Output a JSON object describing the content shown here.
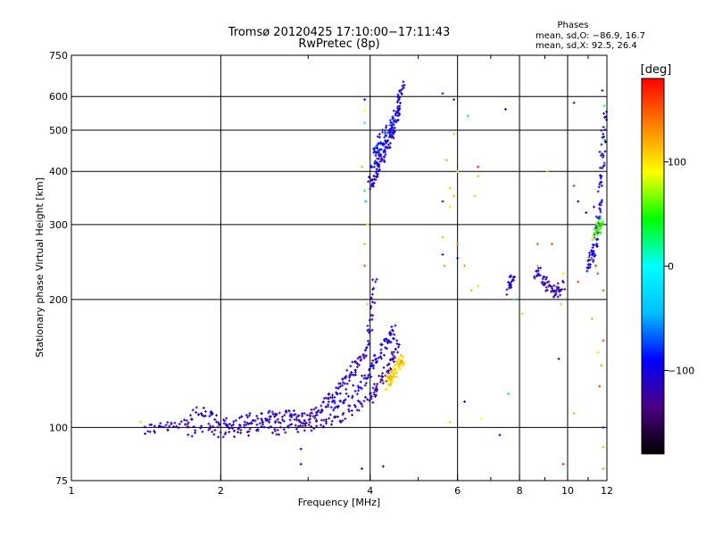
{
  "chart_data": {
    "type": "scatter",
    "title": "Tromsø 20120425 17:10:00−17:11:43",
    "subtitle": "RwPretec (8p)",
    "xlabel": "Frequency [MHz]",
    "ylabel": "Stationary phase Virtual Height [km]",
    "x_scale": "log",
    "y_scale": "log",
    "xlim": [
      1,
      12
    ],
    "ylim": [
      75,
      750
    ],
    "x_ticks": [
      1,
      2,
      4,
      6,
      8,
      10,
      12
    ],
    "x_tick_labels": [
      "1",
      "2",
      "4",
      "6",
      "8",
      "10",
      "12"
    ],
    "x_minor_ticks": [
      3,
      5,
      7,
      9,
      11
    ],
    "y_ticks": [
      75,
      100,
      200,
      300,
      400,
      500,
      600,
      750
    ],
    "y_tick_labels": [
      "75",
      "100",
      "200",
      "300",
      "400",
      "500",
      "600",
      "750"
    ],
    "grid": true,
    "phases_header": "Phases",
    "phases_lines": [
      "mean, sd,O: −86.9, 16.7",
      "mean, sd,X:  92.5, 26.4"
    ],
    "colorbar": {
      "label": "[deg]",
      "range": [
        -180,
        180
      ],
      "ticks": [
        100,
        0,
        -100
      ],
      "tick_labels": [
        "100",
        "0",
        "−100"
      ],
      "stops": [
        "#000000",
        "#4b0082",
        "#0000ff",
        "#00bfff",
        "#00ffff",
        "#00ff00",
        "#ffff00",
        "#ff8000",
        "#ff0000"
      ]
    },
    "traces": [
      {
        "name": "",
        "phase": -115,
        "points": [
          [
            1.4,
            99
          ],
          [
            1.5,
            100
          ],
          [
            1.6,
            100
          ],
          [
            1.7,
            103
          ],
          [
            1.8,
            110
          ],
          [
            1.9,
            106
          ],
          [
            2.0,
            103
          ],
          [
            2.1,
            100
          ],
          [
            2.2,
            103
          ],
          [
            2.3,
            105
          ],
          [
            2.4,
            104
          ],
          [
            2.5,
            106
          ],
          [
            2.6,
            105
          ],
          [
            2.7,
            106
          ],
          [
            2.8,
            107
          ],
          [
            2.9,
            106
          ],
          [
            3.0,
            105
          ],
          [
            3.1,
            108
          ],
          [
            3.2,
            112
          ],
          [
            3.3,
            116
          ],
          [
            3.4,
            121
          ],
          [
            3.5,
            126
          ],
          [
            3.6,
            131
          ],
          [
            3.7,
            136
          ],
          [
            3.8,
            142
          ],
          [
            3.9,
            150
          ],
          [
            4.0,
            165
          ],
          [
            4.05,
            195
          ],
          [
            4.1,
            225
          ]
        ]
      },
      {
        "name": "",
        "phase": -120,
        "points": [
          [
            1.7,
            98
          ],
          [
            1.9,
            100
          ],
          [
            2.0,
            98
          ],
          [
            2.2,
            98
          ],
          [
            2.4,
            100
          ],
          [
            2.6,
            99
          ],
          [
            2.8,
            100
          ],
          [
            3.0,
            101
          ],
          [
            3.2,
            103
          ],
          [
            3.4,
            105
          ],
          [
            3.6,
            108
          ],
          [
            3.8,
            112
          ],
          [
            4.0,
            117
          ],
          [
            4.1,
            122
          ],
          [
            4.2,
            128
          ],
          [
            4.3,
            134
          ],
          [
            4.4,
            142
          ],
          [
            4.5,
            150
          ],
          [
            4.55,
            158
          ]
        ]
      },
      {
        "name": "",
        "phase": -105,
        "points": [
          [
            3.3,
            110
          ],
          [
            3.5,
            116
          ],
          [
            3.7,
            122
          ],
          [
            3.9,
            128
          ],
          [
            4.0,
            135
          ],
          [
            4.1,
            142
          ],
          [
            4.2,
            150
          ],
          [
            4.3,
            158
          ],
          [
            4.4,
            165
          ],
          [
            4.5,
            172
          ]
        ]
      },
      {
        "name": "",
        "phase": -110,
        "points": [
          [
            4.0,
            372
          ],
          [
            4.05,
            380
          ],
          [
            4.1,
            395
          ],
          [
            4.15,
            410
          ],
          [
            4.2,
            425
          ],
          [
            4.25,
            440
          ],
          [
            4.3,
            455
          ],
          [
            4.35,
            470
          ],
          [
            4.4,
            485
          ],
          [
            4.45,
            505
          ],
          [
            4.5,
            530
          ],
          [
            4.55,
            560
          ],
          [
            4.6,
            600
          ],
          [
            4.65,
            640
          ]
        ]
      },
      {
        "name": "",
        "phase": -90,
        "points": [
          [
            4.05,
            420
          ],
          [
            4.1,
            440
          ],
          [
            4.15,
            455
          ],
          [
            4.2,
            470
          ],
          [
            4.3,
            490
          ],
          [
            4.4,
            510
          ],
          [
            4.5,
            540
          ],
          [
            4.6,
            580
          ]
        ]
      },
      {
        "name": "",
        "phase": 105,
        "points": [
          [
            4.3,
            125
          ],
          [
            4.35,
            128
          ],
          [
            4.4,
            131
          ],
          [
            4.45,
            134
          ],
          [
            4.5,
            137
          ],
          [
            4.55,
            140
          ],
          [
            4.6,
            143
          ],
          [
            4.65,
            146
          ]
        ]
      },
      {
        "name": "",
        "phase": -100,
        "points": [
          [
            11.0,
            240
          ],
          [
            11.1,
            248
          ],
          [
            11.2,
            255
          ],
          [
            11.3,
            265
          ],
          [
            11.4,
            280
          ],
          [
            11.5,
            300
          ],
          [
            11.6,
            330
          ],
          [
            11.7,
            380
          ],
          [
            11.75,
            430
          ],
          [
            11.8,
            500
          ],
          [
            11.85,
            560
          ]
        ]
      },
      {
        "name": "",
        "phase": 60,
        "points": [
          [
            11.3,
            285
          ],
          [
            11.45,
            293
          ],
          [
            11.6,
            300
          ],
          [
            11.75,
            292
          ]
        ]
      },
      {
        "name": "",
        "phase": -120,
        "points": [
          [
            8.6,
            225
          ],
          [
            8.8,
            232
          ],
          [
            9.0,
            220
          ],
          [
            9.2,
            212
          ],
          [
            9.4,
            208
          ],
          [
            9.6,
            210
          ],
          [
            9.8,
            218
          ]
        ]
      },
      {
        "name": "",
        "phase": -110,
        "points": [
          [
            7.6,
            210
          ],
          [
            7.7,
            218
          ],
          [
            7.75,
            225
          ]
        ]
      }
    ],
    "scatter_points": [
      {
        "x": 1.38,
        "y": 103,
        "phase": 110
      },
      {
        "x": 2.9,
        "y": 89,
        "phase": -100
      },
      {
        "x": 2.9,
        "y": 82,
        "phase": -110
      },
      {
        "x": 3.85,
        "y": 80,
        "phase": -100
      },
      {
        "x": 4.25,
        "y": 81,
        "phase": -150
      },
      {
        "x": 3.85,
        "y": 410,
        "phase": 120
      },
      {
        "x": 3.9,
        "y": 360,
        "phase": 40
      },
      {
        "x": 3.9,
        "y": 270,
        "phase": 120
      },
      {
        "x": 3.9,
        "y": 240,
        "phase": 150
      },
      {
        "x": 3.95,
        "y": 195,
        "phase": 110
      },
      {
        "x": 3.9,
        "y": 555,
        "phase": 90
      },
      {
        "x": 3.9,
        "y": 520,
        "phase": 20
      },
      {
        "x": 3.9,
        "y": 590,
        "phase": -90
      },
      {
        "x": 3.95,
        "y": 300,
        "phase": 100
      },
      {
        "x": 3.92,
        "y": 340,
        "phase": -50
      },
      {
        "x": 5.6,
        "y": 610,
        "phase": -120
      },
      {
        "x": 5.9,
        "y": 590,
        "phase": -110
      },
      {
        "x": 5.9,
        "y": 490,
        "phase": 110
      },
      {
        "x": 5.8,
        "y": 365,
        "phase": 110
      },
      {
        "x": 5.9,
        "y": 350,
        "phase": 120
      },
      {
        "x": 5.6,
        "y": 340,
        "phase": -120
      },
      {
        "x": 5.8,
        "y": 330,
        "phase": 100
      },
      {
        "x": 5.6,
        "y": 280,
        "phase": 120
      },
      {
        "x": 5.6,
        "y": 255,
        "phase": -110
      },
      {
        "x": 5.65,
        "y": 240,
        "phase": 130
      },
      {
        "x": 6.0,
        "y": 250,
        "phase": -90
      },
      {
        "x": 6.2,
        "y": 240,
        "phase": 130
      },
      {
        "x": 6.0,
        "y": 270,
        "phase": 140
      },
      {
        "x": 6.4,
        "y": 210,
        "phase": 120
      },
      {
        "x": 6.6,
        "y": 215,
        "phase": 110
      },
      {
        "x": 6.3,
        "y": 540,
        "phase": 30
      },
      {
        "x": 6.6,
        "y": 410,
        "phase": 170
      },
      {
        "x": 6.6,
        "y": 390,
        "phase": 110
      },
      {
        "x": 6.5,
        "y": 350,
        "phase": 110
      },
      {
        "x": 5.7,
        "y": 425,
        "phase": 120
      },
      {
        "x": 6.0,
        "y": 400,
        "phase": 110
      },
      {
        "x": 5.8,
        "y": 103,
        "phase": 110
      },
      {
        "x": 6.2,
        "y": 115,
        "phase": -100
      },
      {
        "x": 6.7,
        "y": 105,
        "phase": 90
      },
      {
        "x": 7.3,
        "y": 96,
        "phase": -100
      },
      {
        "x": 7.5,
        "y": 560,
        "phase": -100
      },
      {
        "x": 7.6,
        "y": 120,
        "phase": 40
      },
      {
        "x": 8.1,
        "y": 185,
        "phase": 110
      },
      {
        "x": 7.8,
        "y": 200,
        "phase": 40
      },
      {
        "x": 8.7,
        "y": 270,
        "phase": 150
      },
      {
        "x": 8.7,
        "y": 240,
        "phase": 120
      },
      {
        "x": 9.1,
        "y": 400,
        "phase": 110
      },
      {
        "x": 9.3,
        "y": 270,
        "phase": 150
      },
      {
        "x": 9.6,
        "y": 145,
        "phase": -130
      },
      {
        "x": 9.7,
        "y": 195,
        "phase": 110
      },
      {
        "x": 9.8,
        "y": 82,
        "phase": 170
      },
      {
        "x": 9.8,
        "y": 230,
        "phase": 100
      },
      {
        "x": 10.3,
        "y": 580,
        "phase": -110
      },
      {
        "x": 10.3,
        "y": 370,
        "phase": 170
      },
      {
        "x": 10.5,
        "y": 340,
        "phase": -150
      },
      {
        "x": 10.5,
        "y": 220,
        "phase": 160
      },
      {
        "x": 10.3,
        "y": 108,
        "phase": 120
      },
      {
        "x": 10.9,
        "y": 320,
        "phase": -120
      },
      {
        "x": 11.1,
        "y": 250,
        "phase": 90
      },
      {
        "x": 11.2,
        "y": 180,
        "phase": 120
      },
      {
        "x": 11.3,
        "y": 330,
        "phase": -100
      },
      {
        "x": 11.4,
        "y": 240,
        "phase": 170
      },
      {
        "x": 11.5,
        "y": 230,
        "phase": 160
      },
      {
        "x": 11.5,
        "y": 150,
        "phase": 100
      },
      {
        "x": 11.6,
        "y": 125,
        "phase": 160
      },
      {
        "x": 11.7,
        "y": 140,
        "phase": 120
      },
      {
        "x": 11.8,
        "y": 100,
        "phase": -110
      },
      {
        "x": 11.8,
        "y": 90,
        "phase": 120
      },
      {
        "x": 11.8,
        "y": 80,
        "phase": 130
      },
      {
        "x": 11.75,
        "y": 620,
        "phase": -110
      },
      {
        "x": 11.85,
        "y": 570,
        "phase": 30
      },
      {
        "x": 11.85,
        "y": 475,
        "phase": 50
      },
      {
        "x": 11.75,
        "y": 440,
        "phase": -130
      },
      {
        "x": 11.8,
        "y": 210,
        "phase": 150
      },
      {
        "x": 11.8,
        "y": 160,
        "phase": 160
      }
    ]
  }
}
